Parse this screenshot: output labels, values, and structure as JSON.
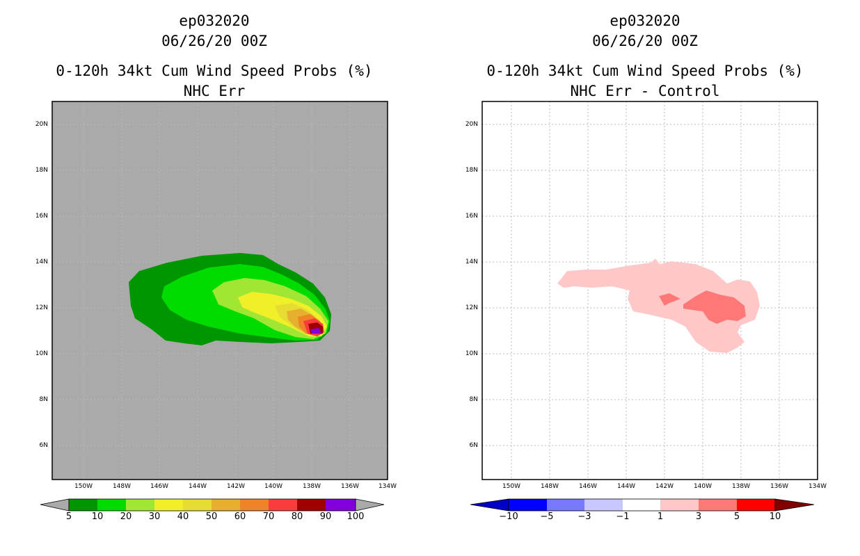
{
  "left_panel": {
    "storm_id": "ep032020",
    "datetime": "06/26/20 00Z",
    "product": "0-120h 34kt Cum Wind Speed Probs (%)",
    "subtitle": "NHC Err",
    "colorbar": {
      "colors": [
        "#009600",
        "#00dc00",
        "#a0e632",
        "#f0f028",
        "#e6dc32",
        "#e6af2d",
        "#f08228",
        "#fa3c3c",
        "#a00000",
        "#8200dc"
      ],
      "labels": [
        "5",
        "10",
        "20",
        "30",
        "40",
        "50",
        "60",
        "70",
        "80",
        "90",
        "100"
      ]
    }
  },
  "right_panel": {
    "storm_id": "ep032020",
    "datetime": "06/26/20 00Z",
    "product": "0-120h 34kt Cum Wind Speed Probs (%)",
    "subtitle": "NHC Err - Control",
    "colorbar": {
      "colors": [
        "#0000c8",
        "#0000ff",
        "#7878ff",
        "#c8c8ff",
        "#ffffff",
        "#ffc8c8",
        "#ff7878",
        "#ff0000",
        "#c80000"
      ],
      "labels": [
        "−10",
        "−5",
        "−3",
        "−1",
        "1",
        "3",
        "5",
        "10"
      ]
    }
  },
  "axes": {
    "lat_labels": [
      "20N",
      "18N",
      "16N",
      "14N",
      "12N",
      "10N",
      "8N",
      "6N"
    ],
    "lon_labels": [
      "150W",
      "148W",
      "146W",
      "144W",
      "142W",
      "140W",
      "138W",
      "136W",
      "134W"
    ]
  },
  "colors": {
    "land_background": "#aaaaaa",
    "grid": "#bbbbbb"
  }
}
